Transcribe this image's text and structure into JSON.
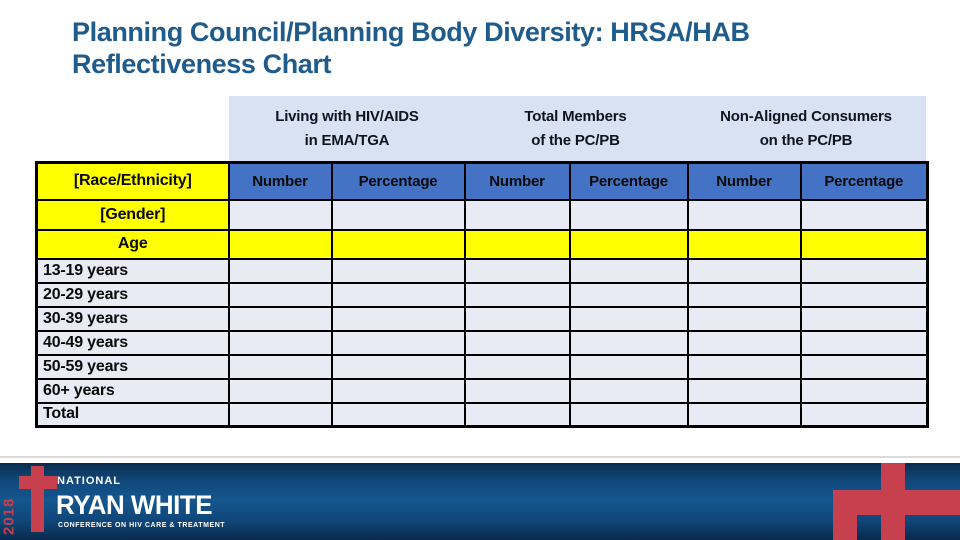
{
  "title": "Planning Council/Planning Body Diversity: HRSA/HAB Reflectiveness Chart",
  "table": {
    "group_headers": {
      "living": "Living with HIV/AIDS\nin EMA/TGA",
      "total": "Total Members\nof the PC/PB",
      "nonaligned": "Non-Aligned Consumers\non the PC/PB"
    },
    "subheader": {
      "row_label": "[Race/Ethnicity]",
      "cols": [
        "Number",
        "Percentage",
        "Number",
        "Percentage",
        "Number",
        "Percentage"
      ]
    },
    "rows": [
      {
        "label": "[Gender]",
        "label_highlight": true,
        "cells_highlight": false,
        "cells": [
          "",
          "",
          "",
          "",
          "",
          ""
        ]
      },
      {
        "label": "Age",
        "label_highlight": true,
        "cells_highlight": true,
        "cells": [
          "",
          "",
          "",
          "",
          "",
          ""
        ]
      },
      {
        "label": "13-19 years",
        "label_highlight": false,
        "cells_highlight": false,
        "cells": [
          "",
          "",
          "",
          "",
          "",
          ""
        ]
      },
      {
        "label": "20-29 years",
        "label_highlight": false,
        "cells_highlight": false,
        "cells": [
          "",
          "",
          "",
          "",
          "",
          ""
        ]
      },
      {
        "label": "30-39 years",
        "label_highlight": false,
        "cells_highlight": false,
        "cells": [
          "",
          "",
          "",
          "",
          "",
          ""
        ]
      },
      {
        "label": "40-49 years",
        "label_highlight": false,
        "cells_highlight": false,
        "cells": [
          "",
          "",
          "",
          "",
          "",
          ""
        ]
      },
      {
        "label": "50-59 years",
        "label_highlight": false,
        "cells_highlight": false,
        "cells": [
          "",
          "",
          "",
          "",
          "",
          ""
        ]
      },
      {
        "label": "60+ years",
        "label_highlight": false,
        "cells_highlight": false,
        "cells": [
          "",
          "",
          "",
          "",
          "",
          ""
        ]
      },
      {
        "label": "Total",
        "label_highlight": false,
        "cells_highlight": false,
        "cells": [
          "",
          "",
          "",
          "",
          "",
          ""
        ]
      }
    ]
  },
  "footer": {
    "year": "2018",
    "national": "NATIONAL",
    "brand": "RYAN WHITE",
    "tagline": "CONFERENCE ON HIV CARE & TREATMENT"
  },
  "colors": {
    "accent_blue": "#4472C4",
    "band_blue": "#D9E2F3",
    "cell_light": "#E9EBF4",
    "highlight_yellow": "#FFFF00",
    "title_blue": "#1F5C8C",
    "banner_red": "#C7404D"
  }
}
